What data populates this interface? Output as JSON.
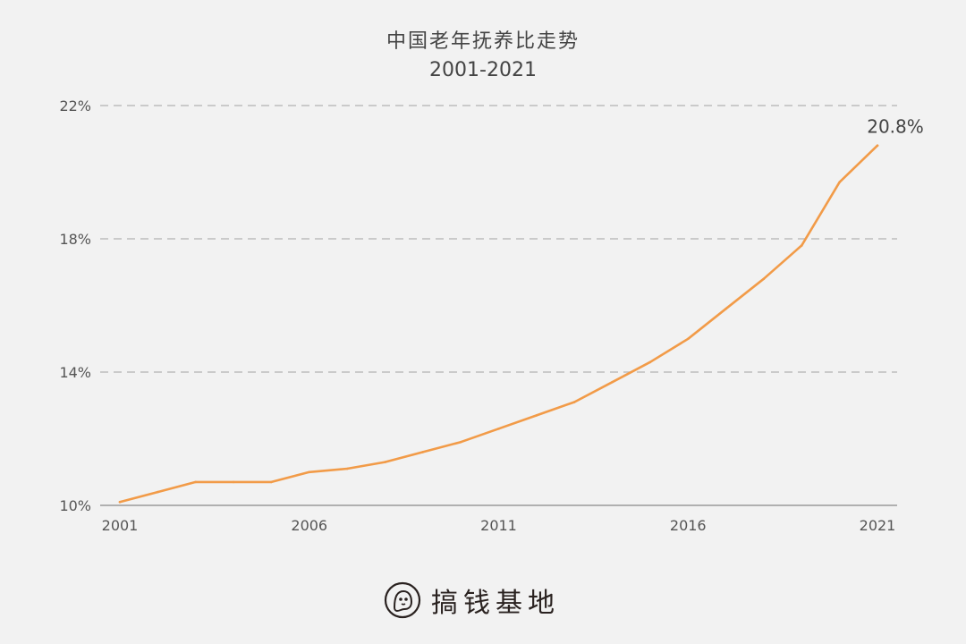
{
  "chart_data": {
    "type": "line",
    "title": "中国老年抚养比走势",
    "subtitle": "2001-2021",
    "xlabel": "",
    "ylabel": "",
    "x": [
      2001,
      2002,
      2003,
      2004,
      2005,
      2006,
      2007,
      2008,
      2009,
      2010,
      2011,
      2012,
      2013,
      2014,
      2015,
      2016,
      2017,
      2018,
      2019,
      2020,
      2021
    ],
    "series": [
      {
        "values": [
          10.1,
          10.4,
          10.7,
          10.7,
          10.7,
          11.0,
          11.1,
          11.3,
          11.6,
          11.9,
          12.3,
          12.7,
          13.1,
          13.7,
          14.3,
          15.0,
          15.9,
          16.8,
          17.8,
          19.7,
          20.8
        ],
        "color": "#f29b48"
      }
    ],
    "xticks": [
      2001,
      2006,
      2011,
      2016,
      2021
    ],
    "xtick_labels": [
      "2001",
      "2006",
      "2011",
      "2016",
      "2021"
    ],
    "yticks": [
      10,
      14,
      18,
      22
    ],
    "ytick_labels": [
      "10%",
      "14%",
      "18%",
      "22%"
    ],
    "xlim": [
      2001,
      2021
    ],
    "ylim": [
      10,
      22
    ],
    "grid": "horizontal-dashed",
    "annotations": [
      {
        "x": 2021,
        "y": 20.8,
        "text": "20.8%"
      }
    ]
  },
  "brand": {
    "name": "搞钱基地",
    "icon": "ghost-face-icon"
  }
}
